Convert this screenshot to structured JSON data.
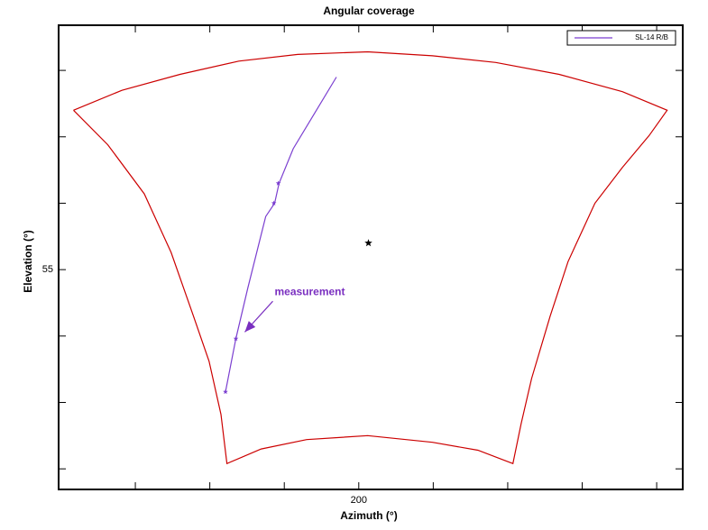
{
  "chart_data": {
    "type": "line",
    "title": "Angular coverage",
    "xlabel": "Azimuth (°)",
    "ylabel": "Elevation (°)",
    "xlim": [
      159.7,
      243.5
    ],
    "ylim": [
      38.45,
      73.4
    ],
    "xticks": [
      200
    ],
    "yticks": [
      55
    ],
    "xminorticks": [
      170,
      180,
      190,
      210,
      220,
      230,
      240
    ],
    "yminorticks": [
      40,
      45,
      50,
      60,
      65,
      70
    ],
    "legend": "upper right",
    "series": [
      {
        "name": "SL-14 R/B",
        "color": "#7b3fd0",
        "x": [
          182.1,
          183.5,
          185.1,
          187.5,
          188.7,
          189.3,
          191.2,
          197.0
        ],
        "values": [
          45.8,
          49.8,
          53.6,
          59.0,
          60.0,
          61.5,
          64.1,
          69.5
        ]
      }
    ],
    "coverage": {
      "color": "#cc0000",
      "x": [
        161.7,
        168.2,
        176.0,
        183.9,
        191.8,
        201.2,
        209.9,
        218.4,
        226.9,
        235.4,
        241.4,
        239.0,
        235.4,
        231.7,
        228.1,
        225.7,
        223.2,
        221.8,
        220.7,
        216.0,
        209.9,
        201.2,
        193.0,
        186.9,
        182.3,
        181.5,
        179.9,
        177.8,
        174.8,
        171.2,
        166.3,
        161.7
      ],
      "values": [
        67.0,
        68.5,
        69.7,
        70.7,
        71.2,
        71.4,
        71.1,
        70.6,
        69.7,
        68.4,
        67.0,
        65.1,
        62.7,
        60.0,
        55.6,
        51.5,
        46.8,
        43.4,
        40.4,
        41.4,
        42.0,
        42.5,
        42.2,
        41.5,
        40.4,
        44.1,
        48.1,
        51.5,
        56.3,
        60.7,
        64.4,
        67.0
      ]
    },
    "measurements": {
      "color": "#7b3fd0",
      "x": [
        182.1,
        183.5,
        188.6,
        189.2
      ],
      "values": [
        45.8,
        49.8,
        60.0,
        61.5
      ]
    },
    "center": {
      "x": 201.3,
      "y": 57.0
    },
    "annotation": {
      "text": "measurement",
      "color": "#7a2fc0",
      "x": 188.7,
      "y": 53.3,
      "arrow_x": 184.7,
      "arrow_y": 50.3
    }
  }
}
